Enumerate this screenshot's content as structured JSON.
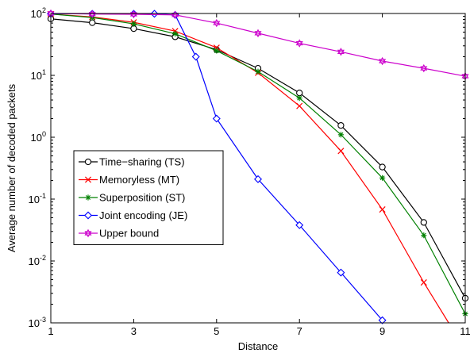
{
  "chart_data": {
    "type": "line",
    "title": "",
    "xlabel": "Distance",
    "ylabel": "Average number of decoded packets",
    "xlim": [
      1,
      11
    ],
    "ylim": [
      0.001,
      100
    ],
    "yscale": "log",
    "grid": false,
    "legend_position": "middle-left",
    "x_ticks": [
      1,
      3,
      5,
      7,
      9,
      11
    ],
    "x_tick_labels": [
      "1",
      "3",
      "5",
      "7",
      "9",
      "11"
    ],
    "y_ticks": [
      0.001,
      0.01,
      0.1,
      1,
      10,
      100
    ],
    "y_tick_labels": [
      {
        "base": "10",
        "exp": "-3"
      },
      {
        "base": "10",
        "exp": "-2"
      },
      {
        "base": "10",
        "exp": "-1"
      },
      {
        "base": "10",
        "exp": "0"
      },
      {
        "base": "10",
        "exp": "1"
      },
      {
        "base": "10",
        "exp": "2"
      }
    ],
    "series": [
      {
        "name": "Time−sharing (TS)",
        "color": "#000000",
        "marker": "circle",
        "x": [
          1,
          2,
          3,
          4,
          5,
          6,
          7,
          8,
          9,
          10,
          11
        ],
        "y": [
          82,
          71,
          57,
          42,
          26,
          13,
          5.2,
          1.55,
          0.33,
          0.042,
          0.0025
        ]
      },
      {
        "name": "Memoryless (MT)",
        "color": "#ff0000",
        "marker": "x",
        "x": [
          1,
          2,
          3,
          4,
          5,
          6,
          7,
          8,
          9,
          10,
          10.6
        ],
        "y": [
          98,
          88,
          72,
          52,
          28,
          11,
          3.2,
          0.6,
          0.068,
          0.0045,
          0.001
        ]
      },
      {
        "name": "Superposition (ST)",
        "color": "#008000",
        "marker": "star",
        "x": [
          1,
          2,
          3,
          4,
          5,
          6,
          7,
          8,
          9,
          10,
          11
        ],
        "y": [
          98,
          86,
          68,
          47,
          25,
          11.5,
          4.3,
          1.1,
          0.22,
          0.026,
          0.0014
        ]
      },
      {
        "name": "Joint encoding (JE)",
        "color": "#0000ff",
        "marker": "diamond",
        "x": [
          1,
          2,
          3,
          3.5,
          4,
          4.5,
          5,
          6,
          7,
          8,
          9
        ],
        "y": [
          99,
          99,
          99,
          99,
          95,
          20,
          2.0,
          0.21,
          0.038,
          0.0065,
          0.0011
        ]
      },
      {
        "name": "Upper bound",
        "color": "#cc00cc",
        "marker": "hexagram",
        "x": [
          1,
          2,
          3,
          4,
          5,
          6,
          7,
          8,
          9,
          10,
          11
        ],
        "y": [
          100,
          98,
          97,
          95,
          70,
          48,
          33,
          24,
          17,
          13,
          9.7
        ]
      }
    ]
  }
}
